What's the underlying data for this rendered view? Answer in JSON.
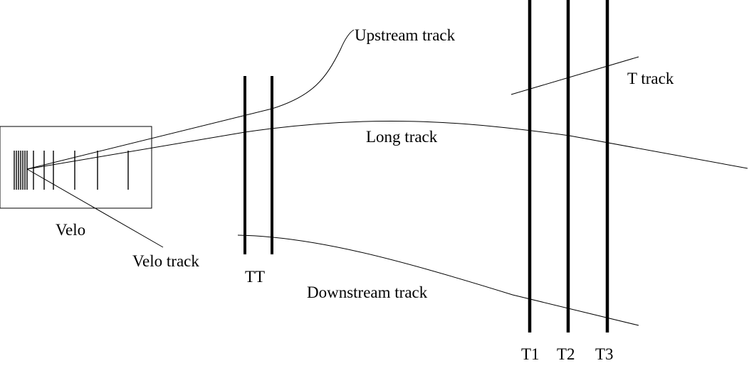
{
  "labels": {
    "upstream_track": "Upstream track",
    "t_track": "T track",
    "long_track": "Long track",
    "velo": "Velo",
    "velo_track": "Velo track",
    "tt": "TT",
    "downstream_track": "Downstream track",
    "t1": "T1",
    "t2": "T2",
    "t3": "T3"
  },
  "colors": {
    "line": "#000000",
    "background": "#ffffff"
  }
}
